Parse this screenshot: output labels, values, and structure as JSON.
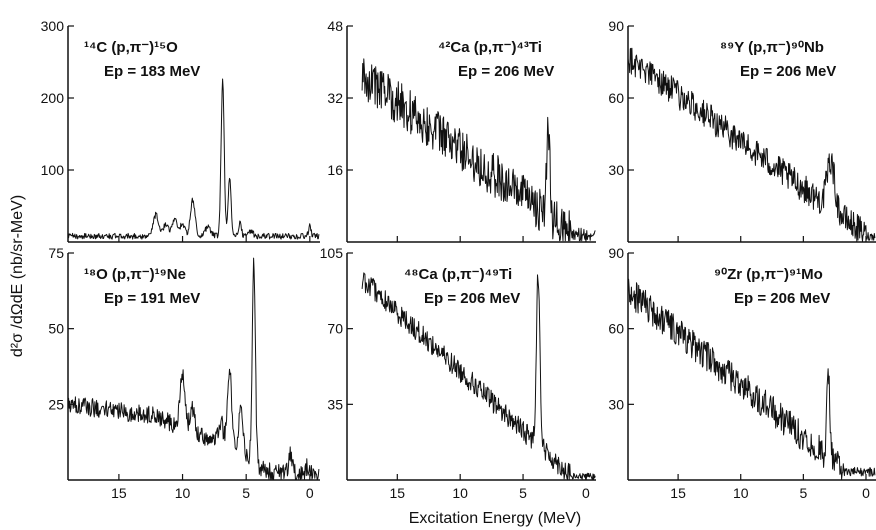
{
  "figure": {
    "ylabel": "d²σ /dΩdE (nb/sr-MeV)",
    "xlabel": "Excitation Energy (MeV)"
  },
  "chart_data": [
    {
      "type": "line",
      "reaction": "¹⁴C (p,π⁻)¹⁵O",
      "beam": "Ep = 183 MeV",
      "xlim": [
        19,
        -0.8
      ],
      "ylim": [
        0,
        300
      ],
      "x_ticks": [
        15,
        10,
        5,
        0
      ],
      "y_ticks": [
        100,
        200,
        300
      ],
      "y_tick_labels": [
        "100",
        "200",
        "300"
      ],
      "baseline": 8,
      "noise": 4,
      "peaks": [
        {
          "e": 12.1,
          "h": 30,
          "w": 0.2
        },
        {
          "e": 11.3,
          "h": 18,
          "w": 0.2
        },
        {
          "e": 10.6,
          "h": 24,
          "w": 0.2
        },
        {
          "e": 10.0,
          "h": 16,
          "w": 0.2
        },
        {
          "e": 9.2,
          "h": 50,
          "w": 0.18
        },
        {
          "e": 8.0,
          "h": 12,
          "w": 0.25
        },
        {
          "e": 6.85,
          "h": 215,
          "w": 0.12
        },
        {
          "e": 6.3,
          "h": 80,
          "w": 0.12
        },
        {
          "e": 5.5,
          "h": 18,
          "w": 0.12
        },
        {
          "e": 4.6,
          "h": 8,
          "w": 0.15
        },
        {
          "e": 0.0,
          "h": 14,
          "w": 0.1
        }
      ]
    },
    {
      "type": "line",
      "reaction": "⁴²Ca (p,π⁻)⁴³Ti",
      "beam": "Ep = 206 MeV",
      "xlim": [
        19,
        -0.8
      ],
      "ylim": [
        0,
        48
      ],
      "x_ticks": [
        15,
        10,
        5,
        0
      ],
      "y_ticks": [
        16,
        32,
        48
      ],
      "y_tick_labels": [
        "16",
        "32",
        "48"
      ],
      "ramp": {
        "start": 17.8,
        "end": 1.2,
        "top": 37,
        "bottom": 2
      },
      "noise": 5,
      "peaks": [
        {
          "e": 3.0,
          "h": 20,
          "w": 0.12
        }
      ]
    },
    {
      "type": "line",
      "reaction": "⁸⁹Y (p,π⁻)⁹⁰Nb",
      "beam": "Ep = 206 MeV",
      "xlim": [
        19,
        -0.8
      ],
      "ylim": [
        0,
        90
      ],
      "x_ticks": [
        15,
        10,
        5,
        0
      ],
      "y_ticks": [
        30,
        60,
        90
      ],
      "y_tick_labels": [
        "30",
        "60",
        "90"
      ],
      "ramp": {
        "start": 19,
        "end": 0,
        "top": 77,
        "bottom": 3
      },
      "noise": 6,
      "peaks": [
        {
          "e": 2.8,
          "h": 20,
          "w": 0.3
        }
      ]
    },
    {
      "type": "line",
      "reaction": "¹⁸O (p,π⁻)¹⁹Ne",
      "beam": "Ep = 191 MeV",
      "xlim": [
        19,
        -0.8
      ],
      "ylim": [
        0,
        75
      ],
      "x_ticks": [
        15,
        10,
        5,
        0
      ],
      "y_ticks": [
        25,
        50,
        75
      ],
      "y_tick_labels": [
        "25",
        "50",
        "75"
      ],
      "segments": [
        [
          19,
          25
        ],
        [
          12,
          21
        ],
        [
          9,
          15
        ],
        [
          7.5,
          13
        ],
        [
          5.5,
          10
        ],
        [
          3.5,
          3
        ],
        [
          0,
          1
        ]
      ],
      "noise": 3,
      "peaks": [
        {
          "e": 10.0,
          "h": 17,
          "w": 0.2
        },
        {
          "e": 9.2,
          "h": 8,
          "w": 0.2
        },
        {
          "e": 7.0,
          "h": 7,
          "w": 0.2
        },
        {
          "e": 6.3,
          "h": 25,
          "w": 0.16
        },
        {
          "e": 5.4,
          "h": 15,
          "w": 0.15
        },
        {
          "e": 4.4,
          "h": 65,
          "w": 0.12
        },
        {
          "e": 1.5,
          "h": 7,
          "w": 0.15
        },
        {
          "e": 0.2,
          "h": 3,
          "w": 0.2
        }
      ]
    },
    {
      "type": "line",
      "reaction": "⁴⁸Ca (p,π⁻)⁴⁹Ti",
      "beam": "Ep = 206 MeV",
      "xlim": [
        19,
        -0.8
      ],
      "ylim": [
        0,
        105
      ],
      "x_ticks": [
        15,
        10,
        5,
        0
      ],
      "y_ticks": [
        35,
        70,
        105
      ],
      "y_tick_labels": [
        "35",
        "70",
        "105"
      ],
      "ramp": {
        "start": 17.8,
        "end": 1.2,
        "top": 93,
        "bottom": 2
      },
      "noise": 5,
      "peaks": [
        {
          "e": 3.8,
          "h": 80,
          "w": 0.14
        }
      ]
    },
    {
      "type": "line",
      "reaction": "⁹⁰Zr (p,π⁻)⁹¹Mo",
      "beam": "Ep = 206 MeV",
      "xlim": [
        19,
        -0.8
      ],
      "ylim": [
        0,
        90
      ],
      "x_ticks": [
        15,
        10,
        5,
        0
      ],
      "y_ticks": [
        30,
        60,
        90
      ],
      "y_tick_labels": [
        "30",
        "60",
        "90"
      ],
      "ramp": {
        "start": 19,
        "end": 1.8,
        "top": 75,
        "bottom": 4
      },
      "noise": 6,
      "peaks": [
        {
          "e": 3.0,
          "h": 32,
          "w": 0.13
        }
      ]
    }
  ]
}
